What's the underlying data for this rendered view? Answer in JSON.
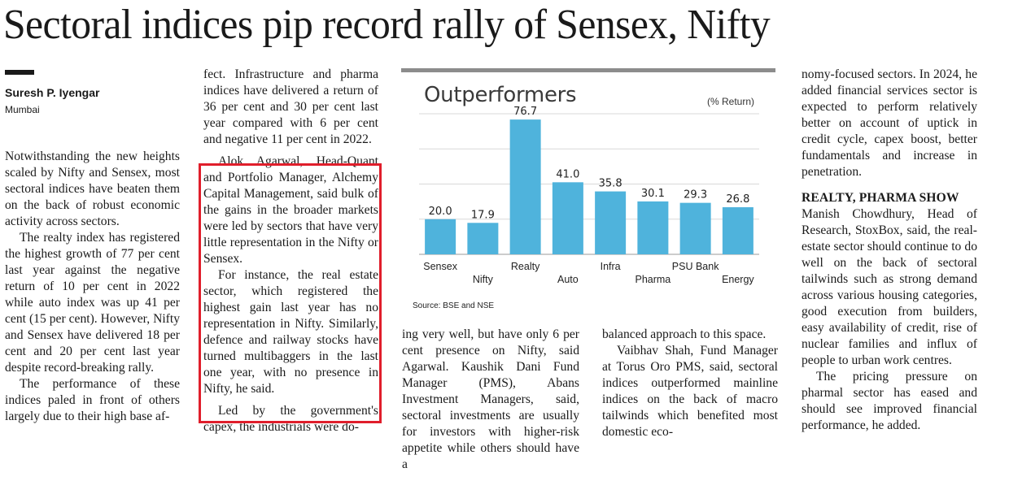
{
  "article": {
    "headline": "Sectoral indices pip record rally of Sensex, Nifty",
    "byline": "Suresh P. Iyengar",
    "dateline": "Mumbai",
    "col1": [
      "Notwithstanding the new heights scaled by Nifty and Sensex, most sectoral indices have beaten them on the back of robust economic activity across sectors.",
      "The realty index has registered the highest growth of 77 per cent last year against the negative return of 10 per cent in 2022 while auto index was up 41 per cent (15 per cent). However, Nifty and Sensex have delivered 18 per cent and 20 per cent last year despite record-breaking rally.",
      "The performance of these indices paled in front of others largely due to their high base af-"
    ],
    "col2": [
      "fect. Infrastructure and pharma indices have delivered a return of 36 per cent and 30 per cent last year compared with 6 per cent and negative 11 per cent in 2022.",
      "Alok Agarwal, Head-Quant and Portfolio Manager, Alchemy Capital Management, said bulk of the gains in the broader markets were led by sectors that have very little representation in the Nifty or Sensex.",
      "For instance, the real estate sector, which registered the highest gain last year has no representation in Nifty. Similarly, defence and railway stocks have turned multibaggers in the last one year, with no presence in Nifty, he said.",
      "Led by the government's capex, the industrials were do-"
    ],
    "col3": [
      "ing very well, but have only 6 per cent presence on Nifty, said Agarwal. Kaushik Dani Fund Manager (PMS), Abans Investment Managers, said, sectoral investments are usually for investors with higher-risk appetite while others should have a"
    ],
    "col4": [
      "balanced approach to this space.",
      "Vaibhav Shah, Fund Manager at Torus Oro PMS, said, sectoral indices outperformed mainline indices on the back of macro tailwinds which benefited most domestic eco-"
    ],
    "col5": [
      "nomy-focused sectors. In 2024, he added financial services sector is expected to perform relatively better on account of uptick in credit cycle, capex boost, better fundamentals and increase in penetration.",
      "Manish Chowdhury, Head of Research, StoxBox, said, the real-estate sector should continue to do well on the back of sectoral tailwinds such as strong demand across various housing categories, good execution from builders, easy availability of credit, rise of nuclear families and influx of people to urban work centres.",
      "The pricing pressure on pharmal sector has eased and should see improved financial performance, he added."
    ],
    "subhead": "REALTY, PHARMA SHOW"
  },
  "colors": {
    "bar": "#4fb3dc",
    "highlight_box": "#e01e2b",
    "chart_rule": "#8c8c8c",
    "grid": "#d9d9d9"
  },
  "chart_data": {
    "type": "bar",
    "title": "Outperformers",
    "unit_note": "(% Return)",
    "categories": [
      "Sensex",
      "Nifty",
      "Realty",
      "Auto",
      "Infra",
      "Pharma",
      "PSU Bank",
      "Energy"
    ],
    "values": [
      20.0,
      17.9,
      76.7,
      41.0,
      35.8,
      30.1,
      29.3,
      26.8
    ],
    "value_labels": [
      "20.0",
      "17.9",
      "76.7",
      "41.0",
      "35.8",
      "30.1",
      "29.3",
      "26.8"
    ],
    "ylim": [
      0,
      80
    ],
    "grid": true,
    "source": "Source: BSE and NSE"
  }
}
